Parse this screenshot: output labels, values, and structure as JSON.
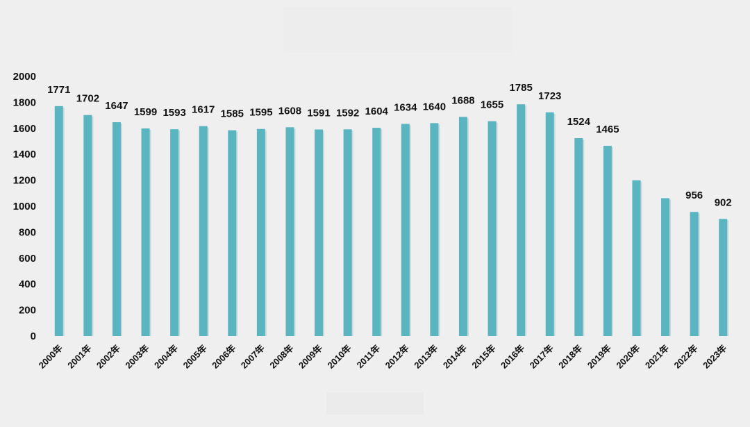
{
  "chart_data": {
    "type": "bar",
    "title": "",
    "xlabel": "",
    "ylabel": "",
    "ylim": [
      0,
      2000
    ],
    "yticks": [
      0,
      200,
      400,
      600,
      800,
      1000,
      1200,
      1400,
      1600,
      1800,
      2000
    ],
    "grid": false,
    "legend": "none",
    "bar_color": "#5bb5c1",
    "bar_shadow_color": "#c9d9db",
    "categories": [
      "2000年",
      "2001年",
      "2002年",
      "2003年",
      "2004年",
      "2005年",
      "2006年",
      "2007年",
      "2008年",
      "2009年",
      "2010年",
      "2011年",
      "2012年",
      "2013年",
      "2014年",
      "2015年",
      "2016年",
      "2017年",
      "2018年",
      "2019年",
      "2020年",
      "2021年",
      "2022年",
      "2023年"
    ],
    "values": [
      1771,
      1702,
      1647,
      1599,
      1593,
      1617,
      1585,
      1595,
      1608,
      1591,
      1592,
      1604,
      1634,
      1640,
      1688,
      1655,
      1785,
      1723,
      1524,
      1465,
      1200,
      1062,
      956,
      902
    ],
    "data_labels": [
      "1771",
      "1702",
      "1647",
      "1599",
      "1593",
      "1617",
      "1585",
      "1595",
      "1608",
      "1591",
      "1592",
      "1604",
      "1634",
      "1640",
      "1688",
      "1655",
      "1785",
      "1723",
      "1524",
      "1465",
      "",
      "",
      "956",
      "902"
    ]
  }
}
